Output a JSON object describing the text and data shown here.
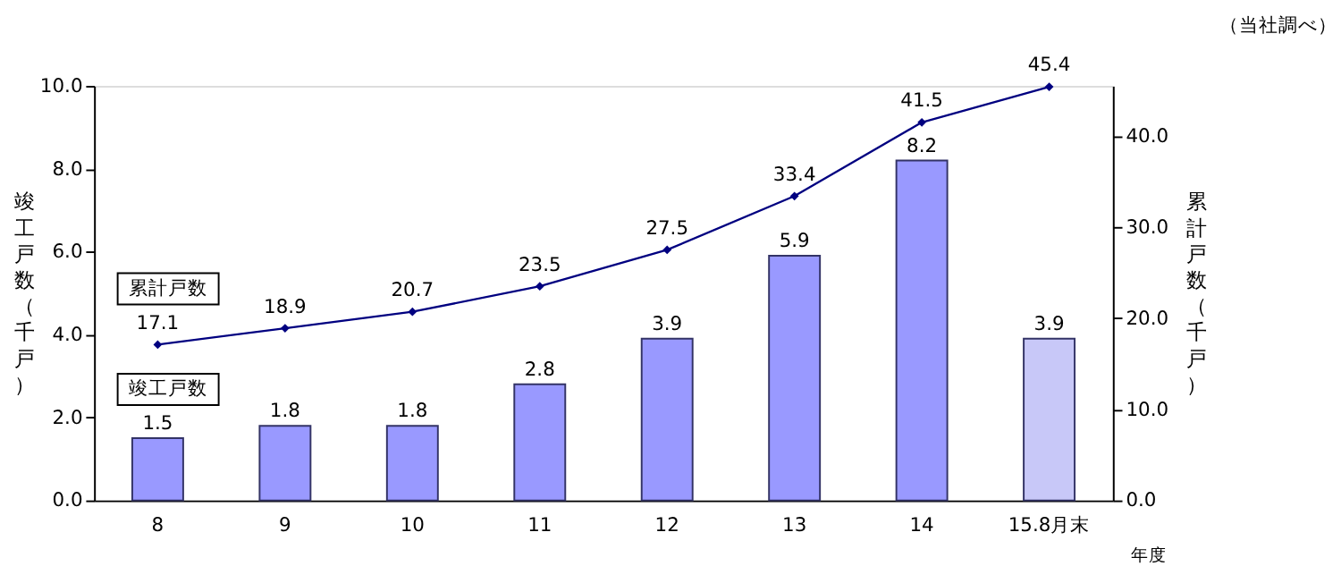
{
  "chart_data": {
    "type": "bar",
    "categories": [
      "8",
      "9",
      "10",
      "11",
      "12",
      "13",
      "14",
      "15.8月末"
    ],
    "xlabel": "年度",
    "ylabel": "竣工戸数（千戸）",
    "y2label": "累計戸数（千戸）",
    "annotations": [
      "（当社調べ）"
    ],
    "ylim": [
      0,
      10
    ],
    "yticks": [
      {
        "value": 0,
        "label": "0.0"
      },
      {
        "value": 2,
        "label": "2.0"
      },
      {
        "value": 4,
        "label": "4.0"
      },
      {
        "value": 6,
        "label": "6.0"
      },
      {
        "value": 8,
        "label": "8.0"
      },
      {
        "value": 10,
        "label": "10.0"
      }
    ],
    "y2lim": [
      0,
      45.5
    ],
    "y2ticks": [
      {
        "value": 0,
        "label": "0.0"
      },
      {
        "value": 10,
        "label": "10.0"
      },
      {
        "value": 20,
        "label": "20.0"
      },
      {
        "value": 30,
        "label": "30.0"
      },
      {
        "value": 40,
        "label": "40.0"
      }
    ],
    "data_labels": true,
    "grid": false,
    "series": [
      {
        "name": "竣工戸数",
        "colors": [
          "#9999ff",
          "#9999ff",
          "#9999ff",
          "#9999ff",
          "#9999ff",
          "#9999ff",
          "#9999ff",
          "#c8c8f8"
        ],
        "values": [
          1.5,
          1.8,
          1.8,
          2.8,
          3.9,
          5.9,
          8.2,
          3.9
        ]
      },
      {
        "name": "累計戸数",
        "type": "line",
        "axis": "y2",
        "color": "#000080",
        "marker": "diamond",
        "values": [
          17.1,
          18.9,
          20.7,
          23.5,
          27.5,
          33.4,
          41.5,
          45.4
        ]
      }
    ]
  }
}
